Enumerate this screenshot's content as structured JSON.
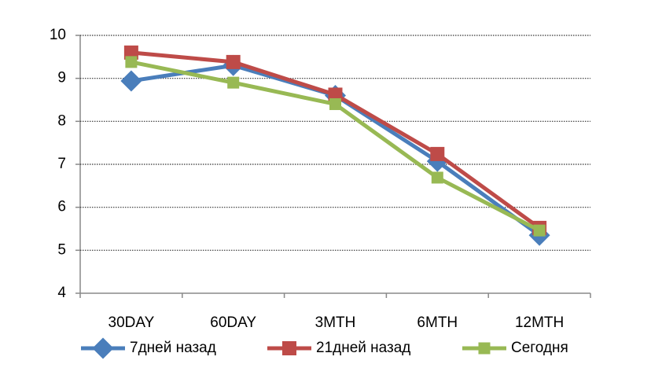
{
  "chart_data": {
    "type": "line",
    "categories": [
      "30DAY",
      "60DAY",
      "3MTH",
      "6MTH",
      "12MTH"
    ],
    "series": [
      {
        "name": "7дней назад",
        "color": "#4a7ebb",
        "marker": "diamond",
        "values": [
          8.94,
          9.3,
          8.6,
          7.07,
          5.35
        ]
      },
      {
        "name": "21дней назад",
        "color": "#be4b48",
        "marker": "square",
        "values": [
          9.6,
          9.38,
          8.62,
          7.24,
          5.52
        ]
      },
      {
        "name": "Сегодня",
        "color": "#98b954",
        "marker": "square",
        "values": [
          9.38,
          8.9,
          8.4,
          6.69,
          5.46
        ]
      }
    ],
    "ylim": [
      4,
      10
    ],
    "yticks": [
      4,
      5,
      6,
      7,
      8,
      9,
      10
    ],
    "grid": true,
    "legend": "bottom"
  }
}
